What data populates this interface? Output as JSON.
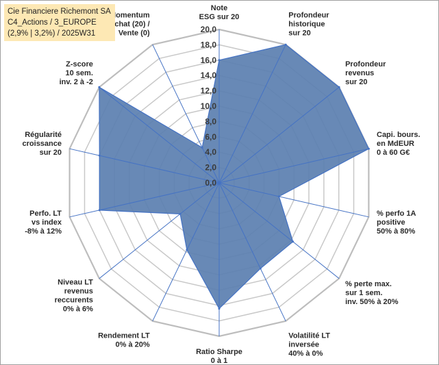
{
  "title_box": {
    "line1": "Cie Financiere Richemont SA",
    "line2": "C4_Actions / 3_EUROPE",
    "line3": "(2,9% | 3,2%) / 2025W31"
  },
  "chart_data": {
    "type": "radar",
    "axis_range": [
      0,
      20
    ],
    "tick_step": 2,
    "tick_labels": [
      "0,0",
      "2,0",
      "4,0",
      "6,0",
      "8,0",
      "10,0",
      "12,0",
      "14,0",
      "16,0",
      "18,0",
      "20,0"
    ],
    "grid": true,
    "colors": {
      "fill": "#5b7fb0",
      "stroke": "#4472c4",
      "grid": "#c8c8c8",
      "spoke": "#4472c4"
    },
    "categories": [
      [
        "Note",
        "ESG sur 20"
      ],
      [
        "Profondeur",
        "historique",
        "sur 20"
      ],
      [
        "Profondeur",
        "revenus",
        "sur 20"
      ],
      [
        "Capi. bours.",
        "en MdEUR",
        "0 à 60 G€"
      ],
      [
        "% perfo 1A",
        "positive",
        "50% à 80%"
      ],
      [
        "% perte max.",
        "sur 1 sem.",
        "inv. 50% à 20%"
      ],
      [
        "Volatilité LT",
        "inversée",
        "40% à 0%"
      ],
      [
        "Ratio Sharpe",
        "0 à 1"
      ],
      [
        "Rendement LT",
        "0% à 20%"
      ],
      [
        "Niveau LT",
        "revenus",
        "reccurents",
        "0% à 6%"
      ],
      [
        "Perfo. LT",
        "vs index",
        "-8% à 12%"
      ],
      [
        "Régularité",
        "croissance",
        "sur 20"
      ],
      [
        "Z-score",
        "10 sem.",
        "inv. 2 à -2"
      ],
      [
        "Momentum",
        "Achat (20) /",
        "Vente (0)"
      ]
    ],
    "series": [
      {
        "values": [
          16,
          20,
          20,
          20,
          8,
          12.3,
          12.4,
          16.4,
          9.7,
          6.5,
          16,
          16,
          20,
          5.1
        ]
      }
    ]
  }
}
